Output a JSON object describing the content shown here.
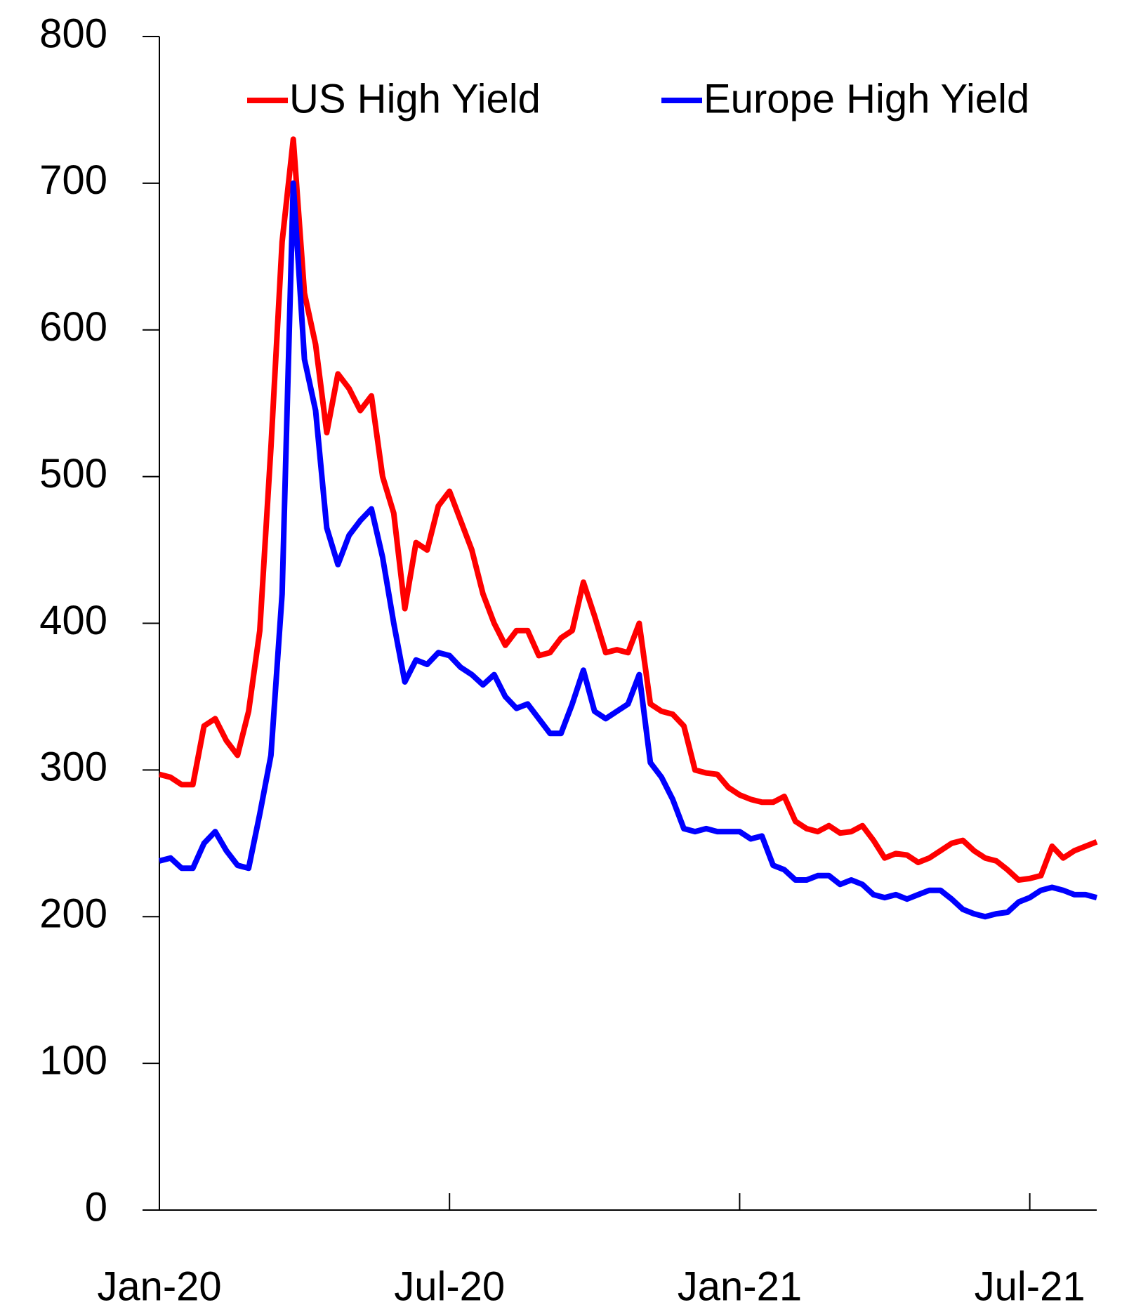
{
  "chart_data": {
    "type": "line",
    "categories": [
      "Jan-20",
      null,
      null,
      null,
      null,
      null,
      null,
      null,
      null,
      null,
      null,
      null,
      null,
      null,
      null,
      null,
      null,
      null,
      null,
      null,
      null,
      null,
      null,
      null,
      null,
      null,
      "Jul-20",
      null,
      null,
      null,
      null,
      null,
      null,
      null,
      null,
      null,
      null,
      null,
      null,
      null,
      null,
      null,
      null,
      null,
      null,
      null,
      null,
      null,
      null,
      null,
      null,
      null,
      "Jan-21",
      null,
      null,
      null,
      null,
      null,
      null,
      null,
      null,
      null,
      null,
      null,
      null,
      null,
      null,
      null,
      null,
      null,
      null,
      null,
      null,
      null,
      null,
      null,
      null,
      null,
      "Jul-21",
      null,
      null,
      null,
      null,
      null,
      null
    ],
    "series": [
      {
        "name": "US High Yield",
        "color": "#ff0000",
        "values": [
          297,
          295,
          290,
          290,
          330,
          335,
          320,
          310,
          340,
          395,
          520,
          660,
          730,
          625,
          590,
          530,
          570,
          560,
          545,
          555,
          500,
          475,
          410,
          455,
          450,
          480,
          490,
          470,
          450,
          420,
          400,
          385,
          395,
          395,
          378,
          380,
          390,
          395,
          428,
          405,
          380,
          382,
          380,
          400,
          345,
          340,
          338,
          330,
          300,
          298,
          297,
          288,
          283,
          280,
          278,
          278,
          282,
          265,
          260,
          258,
          262,
          257,
          258,
          262,
          252,
          240,
          243,
          242,
          237,
          240,
          245,
          250,
          252,
          245,
          240,
          238,
          232,
          225,
          226,
          228,
          248,
          240,
          245,
          248,
          251
        ]
      },
      {
        "name": "Europe High Yield",
        "color": "#0000ff",
        "values": [
          238,
          240,
          233,
          233,
          250,
          258,
          245,
          235,
          233,
          270,
          310,
          420,
          700,
          580,
          545,
          465,
          440,
          460,
          470,
          478,
          445,
          400,
          360,
          375,
          372,
          380,
          378,
          370,
          365,
          358,
          365,
          350,
          342,
          345,
          335,
          325,
          325,
          345,
          368,
          340,
          335,
          340,
          345,
          365,
          305,
          295,
          280,
          260,
          258,
          260,
          258,
          258,
          258,
          253,
          255,
          235,
          232,
          225,
          225,
          228,
          228,
          222,
          225,
          222,
          215,
          213,
          215,
          212,
          215,
          218,
          218,
          212,
          205,
          202,
          200,
          202,
          203,
          210,
          213,
          218,
          220,
          218,
          215,
          215,
          213
        ]
      }
    ],
    "ylim": [
      0,
      800
    ],
    "yticks": [
      0,
      100,
      200,
      300,
      400,
      500,
      600,
      700,
      800
    ],
    "legend": "upper right",
    "grid": false
  }
}
